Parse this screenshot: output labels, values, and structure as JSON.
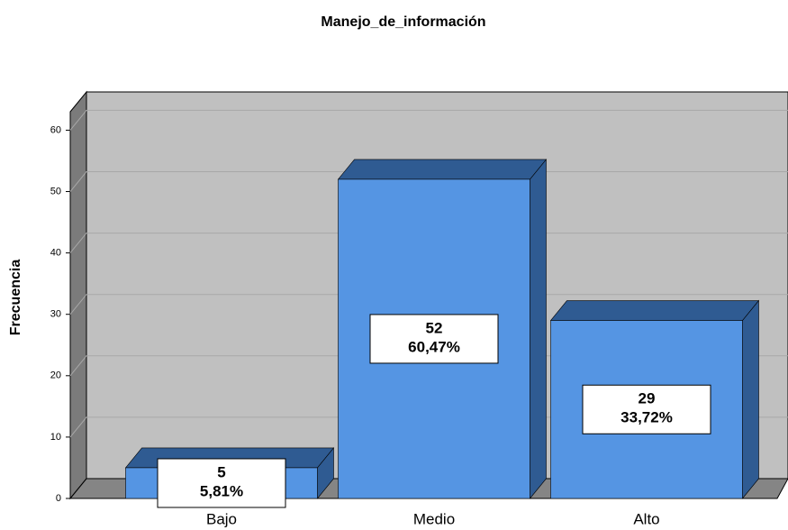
{
  "chart_data": {
    "type": "bar3d",
    "title": "Manejo_de_información",
    "y_label": "Frecuencia",
    "categories": [
      "Bajo",
      "Medio",
      "Alto"
    ],
    "values": [
      5,
      52,
      29
    ],
    "percentages": [
      5.81,
      60.47,
      33.72
    ],
    "percentage_labels": [
      "5,81%",
      "60,47%",
      "33,72%"
    ],
    "color": "#5595e3",
    "shade_color": "#2f5b92",
    "ylim": [
      0,
      63
    ],
    "yticks": [
      0,
      10,
      20,
      30,
      40,
      50,
      60
    ],
    "grid": true
  }
}
